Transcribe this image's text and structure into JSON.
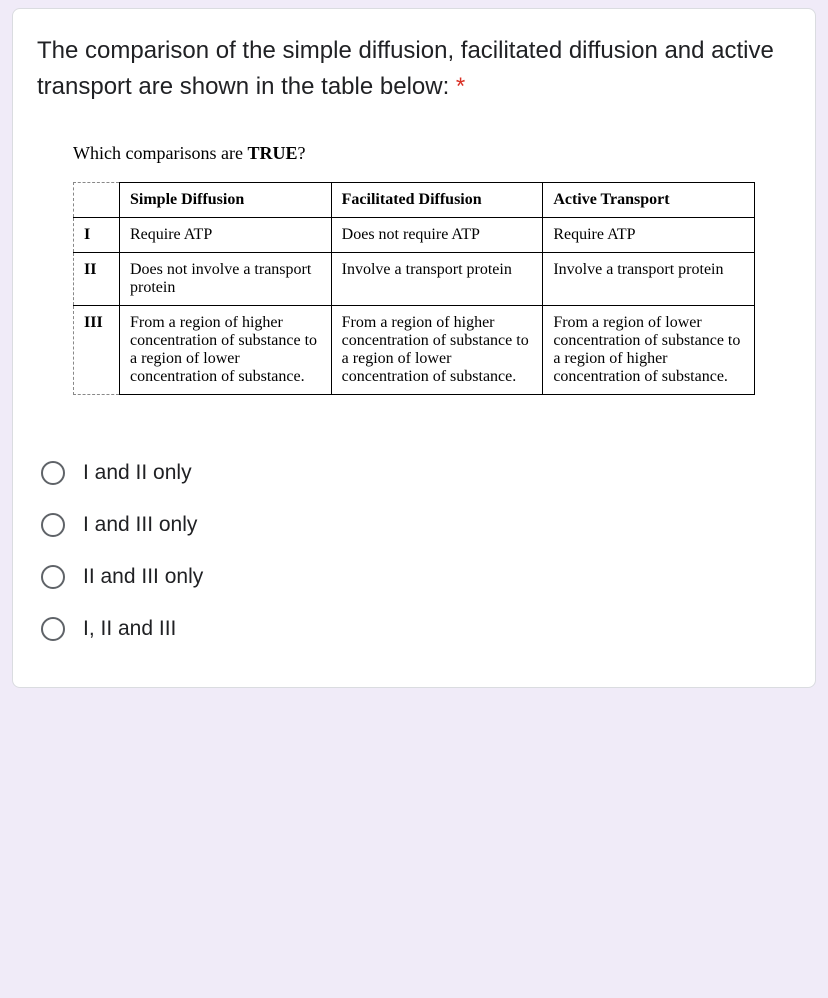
{
  "question": {
    "title": "The comparison of the simple diffusion, facilitated diffusion and active transport are shown in the table below:",
    "required_mark": "*",
    "sub_prompt_prefix": "Which comparisons are ",
    "sub_prompt_bold": "TRUE",
    "sub_prompt_suffix": "?"
  },
  "table": {
    "headers": {
      "rn": "",
      "c1": "Simple Diffusion",
      "c2": "Facilitated Diffusion",
      "c3": "Active Transport"
    },
    "rows": [
      {
        "rn": "I",
        "c1": "Require ATP",
        "c2": "Does not require ATP",
        "c3": "Require ATP"
      },
      {
        "rn": "II",
        "c1": "Does not involve a transport protein",
        "c2": "Involve a transport protein",
        "c3": "Involve a transport protein"
      },
      {
        "rn": "III",
        "c1": "From a region of higher concentration of substance to a region of lower concentration of substance.",
        "c2": "From a region of higher concentration of substance to a region of lower concentration of substance.",
        "c3": "From a region of lower concentration of substance to a region of higher concentration of substance."
      }
    ]
  },
  "options": [
    {
      "label": "I and II only"
    },
    {
      "label": "I and III only"
    },
    {
      "label": "II and III only"
    },
    {
      "label": "I, II and III"
    }
  ],
  "style": {
    "card_bg": "#ffffff",
    "page_bg": "#f0ebf8",
    "border": "#dadce0",
    "text": "#202124",
    "required": "#d93025",
    "radio_border": "#5f6368",
    "table_font": "Times New Roman",
    "body_font": "Arial",
    "title_fontsize": 24,
    "option_fontsize": 21,
    "table_fontsize": 16
  }
}
